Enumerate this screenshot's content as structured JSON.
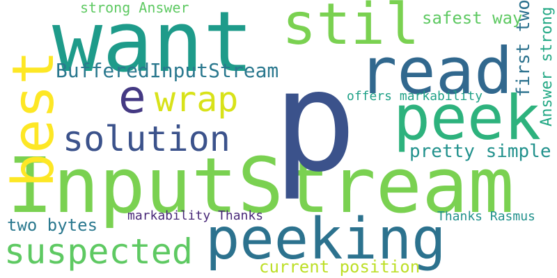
{
  "cloud": {
    "words": [
      {
        "id": "inputstream",
        "text": "InputStream",
        "color": "#7ad151"
      },
      {
        "id": "p",
        "text": "p",
        "color": "#3b528b"
      },
      {
        "id": "want",
        "text": "want",
        "color": "#1e9b8a"
      },
      {
        "id": "peeking",
        "text": "peeking",
        "color": "#2c728e"
      },
      {
        "id": "peek",
        "text": "peek",
        "color": "#2db27d"
      },
      {
        "id": "best",
        "text": "best",
        "color": "#fde725"
      },
      {
        "id": "read",
        "text": "read",
        "color": "#31688e"
      },
      {
        "id": "stil",
        "text": "stil",
        "color": "#7ad151"
      },
      {
        "id": "suspected",
        "text": "suspected",
        "color": "#5ec962"
      },
      {
        "id": "e",
        "text": "e",
        "color": "#443983"
      },
      {
        "id": "wrap",
        "text": "wrap",
        "color": "#d8e219"
      },
      {
        "id": "solution",
        "text": "solution",
        "color": "#3b528b"
      },
      {
        "id": "bufferedinputstream",
        "text": "BufferedInputStream",
        "color": "#2a788e"
      },
      {
        "id": "pretty-simple",
        "text": "pretty simple",
        "color": "#21918c"
      },
      {
        "id": "safest-way",
        "text": "safest way",
        "color": "#5ec962"
      },
      {
        "id": "first-two",
        "text": "first two",
        "color": "#2c728e"
      },
      {
        "id": "answer-strong",
        "text": "Answer strong",
        "color": "#22a884"
      },
      {
        "id": "two-bytes",
        "text": "two bytes",
        "color": "#2a788e"
      },
      {
        "id": "current-position",
        "text": "current position",
        "color": "#bddf26"
      },
      {
        "id": "strong-answer",
        "text": "strong Answer",
        "color": "#5ec962"
      },
      {
        "id": "offers-markability",
        "text": "offers markability",
        "color": "#1fa187"
      },
      {
        "id": "markability-thanks",
        "text": "markability Thanks",
        "color": "#482878"
      },
      {
        "id": "thanks-rasmus",
        "text": "Thanks Rasmus",
        "color": "#21918c"
      }
    ]
  }
}
